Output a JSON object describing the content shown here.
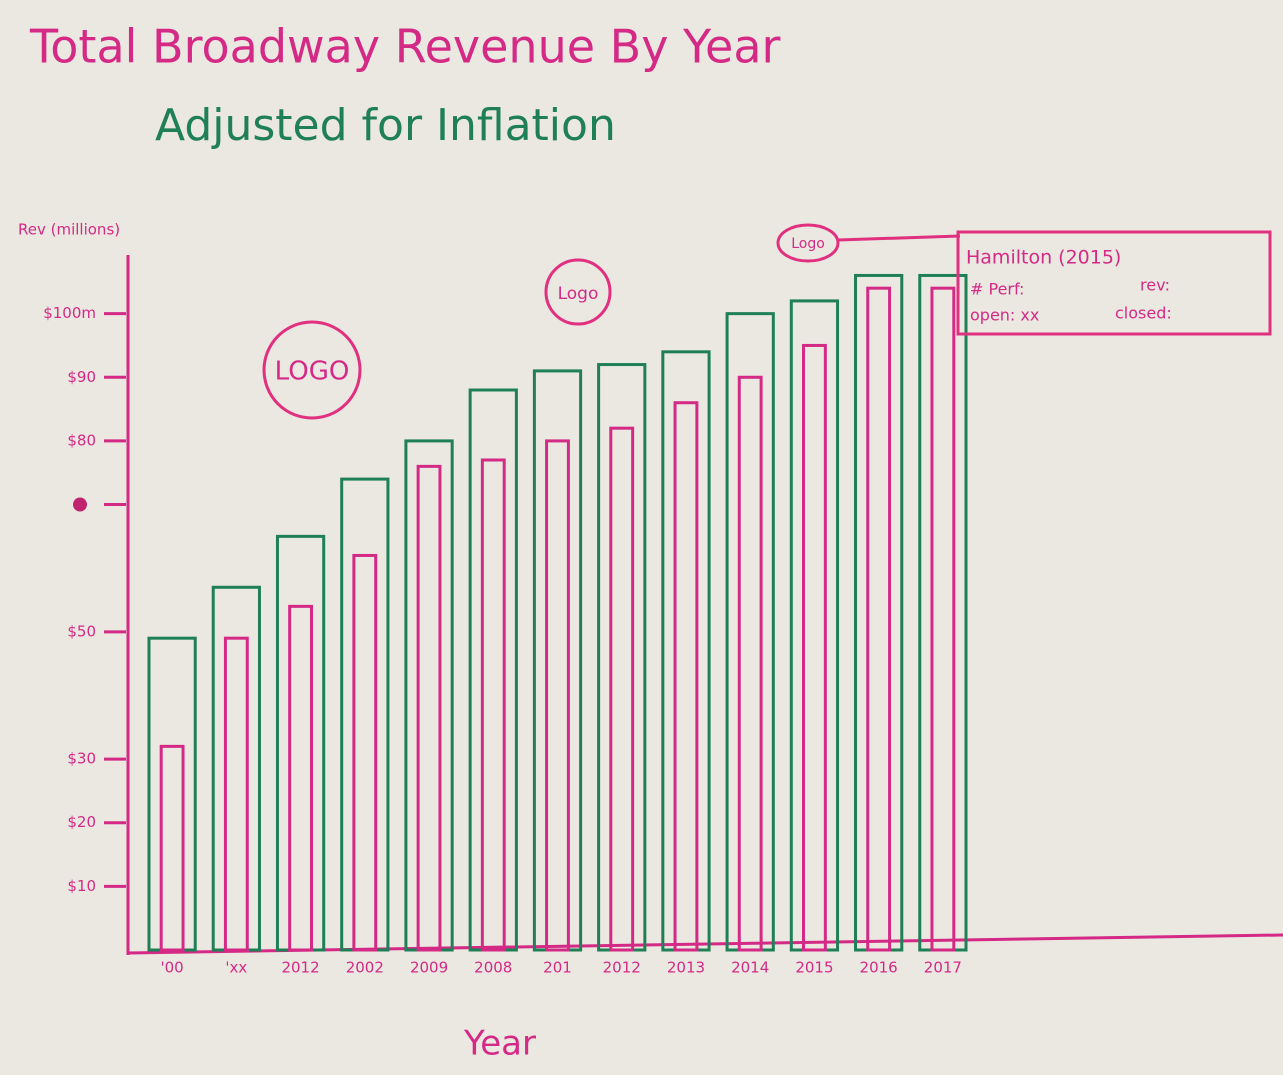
{
  "chart_data": {
    "type": "bar",
    "title": "Total Broadway Revenue By Year",
    "subtitle": "Adjusted for Inflation",
    "y_label": "Rev (millions)",
    "x_label": "Year",
    "categories": [
      "'00",
      "'xx",
      "2012",
      "2002",
      "2009",
      "2008",
      "201",
      "2012",
      "2013",
      "2014",
      "2015",
      "2016",
      "2017"
    ],
    "series": [
      {
        "color": "#1f7f55",
        "values": [
          49,
          57,
          65,
          74,
          80,
          88,
          91,
          92,
          94,
          100,
          102,
          106,
          106
        ]
      },
      {
        "color": "#d42a86",
        "values": [
          32,
          49,
          54,
          62,
          76,
          77,
          80,
          82,
          86,
          90,
          95,
          104,
          104
        ]
      }
    ],
    "ylim": [
      0,
      110
    ],
    "yticks": [
      {
        "value": 10,
        "label": "$10"
      },
      {
        "value": 20,
        "label": "$20"
      },
      {
        "value": 30,
        "label": "$30"
      },
      {
        "value": 50,
        "label": "$50"
      },
      {
        "value": 70,
        "label": null
      },
      {
        "value": 80,
        "label": "$80"
      },
      {
        "value": 90,
        "label": "$90"
      },
      {
        "value": 100,
        "label": "$100m"
      }
    ],
    "annotations": {
      "logos": [
        "LOGO",
        "Logo",
        "Logo"
      ],
      "tooltip": {
        "title": "Hamilton (2015)",
        "perf": "# Perf:",
        "rev": "rev:",
        "open": "open: xx",
        "closed": "closed:"
      }
    }
  }
}
